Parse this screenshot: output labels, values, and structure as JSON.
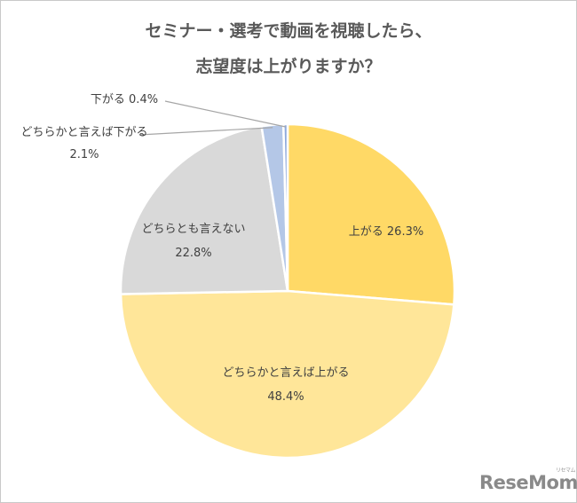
{
  "title": {
    "line1": "セミナー・選考で動画を視聴したら、",
    "line2": "志望度は上がりますか？"
  },
  "chart_data": {
    "type": "pie",
    "start_angle_deg": 0,
    "direction": "clockwise",
    "slices": [
      {
        "label": "上がる",
        "value": 26.3,
        "value_text": "26.3%",
        "color": "#FFD966"
      },
      {
        "label": "どちらかと言えば上がる",
        "value": 48.4,
        "value_text": "48.4%",
        "color": "#FFE699"
      },
      {
        "label": "どちらとも言えない",
        "value": 22.8,
        "value_text": "22.8%",
        "color": "#D9D9D9"
      },
      {
        "label": "どちらかと言えば下がる",
        "value": 2.1,
        "value_text": "2.1%",
        "color": "#B4C7E7"
      },
      {
        "label": "下がる",
        "value": 0.4,
        "value_text": "0.4%",
        "color": "#8FAADC"
      }
    ]
  },
  "logo": {
    "text": "ReseMom",
    "sub": "リセマム"
  }
}
